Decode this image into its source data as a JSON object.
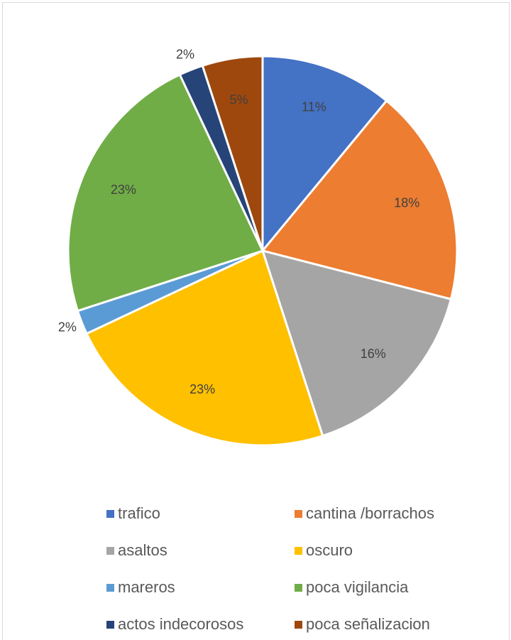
{
  "chart_data": {
    "type": "pie",
    "categories": [
      "trafico",
      "cantina /borrachos",
      "asaltos",
      "oscuro",
      "mareros",
      "poca vigilancia",
      "actos indecorosos",
      "poca señalizacion"
    ],
    "values": [
      11,
      18,
      16,
      23,
      2,
      23,
      2,
      5
    ],
    "value_labels": [
      "11%",
      "18%",
      "16%",
      "23%",
      "2%",
      "23%",
      "2%",
      "5%"
    ],
    "colors": [
      "#4472c4",
      "#ed7d31",
      "#a5a5a5",
      "#ffc000",
      "#5b9bd5",
      "#70ad47",
      "#264478",
      "#9e480e"
    ],
    "legend": "bottom"
  }
}
